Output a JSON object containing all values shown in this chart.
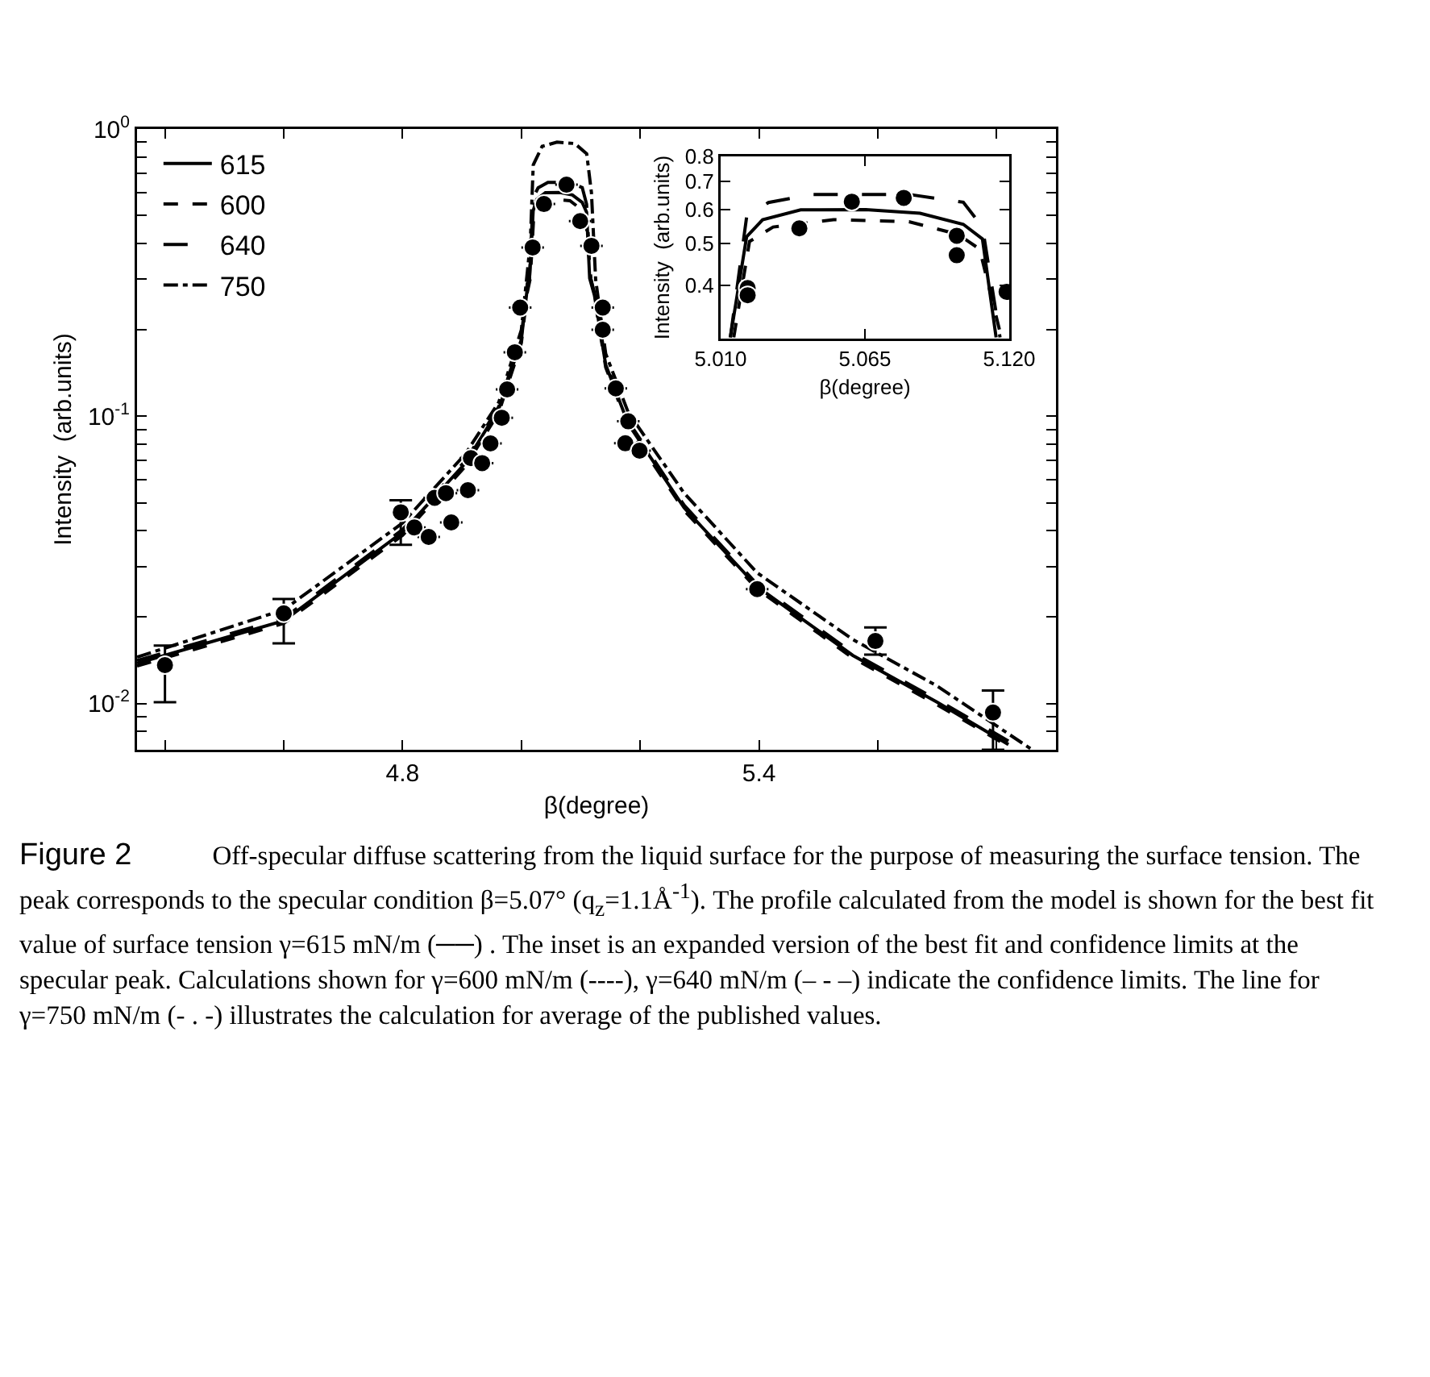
{
  "chart_data": [
    {
      "type": "line",
      "title": "Figure 2",
      "xlabel": "β(degree)",
      "ylabel": "Intensity  (arb.units)",
      "log": "y",
      "legend": "top left",
      "grid": false,
      "xlim": [
        4.353,
        5.9
      ],
      "xticks": [
        {
          "value": 4.4,
          "label": null
        },
        {
          "value": 4.6,
          "label": null
        },
        4.8,
        {
          "value": 5.0,
          "label": null
        },
        {
          "value": 5.2,
          "label": null
        },
        5.4,
        {
          "value": 5.6,
          "label": null
        },
        {
          "value": 5.8,
          "label": null
        }
      ],
      "ylim": [
        0.0069,
        1
      ],
      "yticks": [
        {
          "value": 0.008,
          "label": null
        },
        {
          "value": 0.009,
          "label": null
        },
        {
          "value": 0.01,
          "label": "10$^{-2}$"
        },
        {
          "value": 0.02,
          "label": null
        },
        {
          "value": 0.03,
          "label": null
        },
        {
          "value": 0.04,
          "label": null
        },
        {
          "value": 0.05,
          "label": null
        },
        {
          "value": 0.06,
          "label": null
        },
        {
          "value": 0.07,
          "label": null
        },
        {
          "value": 0.08,
          "label": null
        },
        {
          "value": 0.09,
          "label": null
        },
        {
          "value": 0.1,
          "label": "10$^{-1}$"
        },
        {
          "value": 0.2,
          "label": null
        },
        {
          "value": 0.3,
          "label": null
        },
        {
          "value": 0.4,
          "label": null
        },
        {
          "value": 0.5,
          "label": null
        },
        {
          "value": 0.6,
          "label": null
        },
        {
          "value": 0.7,
          "label": null
        },
        {
          "value": 0.8,
          "label": null
        },
        {
          "value": 0.9,
          "label": null
        },
        {
          "value": 1,
          "label": "10$^{0}$"
        }
      ],
      "annotations": [
        "Off-specular diffuse scattering from the liquid surface for the purpose of measuring the surface tension.  The peak corresponds to the specular condition β=5.07° (q$_{z}$=1.1Å$^{-1}$).  The profile calculated from the model is shown  for the best fit value  of surface tension γ=615 mN/m (──) . The inset is an expanded version of the best fit and confidence limits at the specular peak. Calculations shown for  γ=600 mN/m (----),  γ=640 mN/m (– - –) indicate the confidence limits. The line for γ=750 mN/m (- . -) illustrates the calculation for average of the published values."
      ],
      "series": [
        {
          "name": "615",
          "color": "#000000",
          "line_style": "solid",
          "x": [
            4.353,
            4.6,
            4.8,
            4.906,
            4.962,
            5.0,
            5.01,
            5.0137,
            5.0199,
            5.026,
            5.0405,
            5.0653,
            5.086,
            5.1025,
            5.1098,
            5.115,
            5.123,
            5.142,
            5.18,
            5.274,
            5.397,
            5.558,
            5.7,
            5.82
          ],
          "values": [
            0.0138,
            0.0194,
            0.0395,
            0.0687,
            0.106,
            0.185,
            0.28,
            0.302,
            0.519,
            0.569,
            0.6,
            0.601,
            0.589,
            0.555,
            0.513,
            0.302,
            0.264,
            0.151,
            0.094,
            0.048,
            0.0255,
            0.0147,
            0.0101,
            0.0072
          ]
        },
        {
          "name": "600",
          "color": "#000000",
          "line_style": "dashed",
          "x": [
            4.353,
            4.6,
            4.8,
            4.906,
            4.962,
            5.0,
            5.01,
            5.015,
            5.021,
            5.03,
            5.053,
            5.0818,
            5.1004,
            5.1087,
            5.117,
            5.123,
            5.142,
            5.18,
            5.274,
            5.397,
            5.558,
            5.7,
            5.82
          ],
          "values": [
            0.0135,
            0.019,
            0.0385,
            0.067,
            0.103,
            0.18,
            0.27,
            0.302,
            0.506,
            0.547,
            0.569,
            0.563,
            0.526,
            0.486,
            0.302,
            0.26,
            0.148,
            0.092,
            0.047,
            0.025,
            0.0144,
            0.0099,
            0.0071
          ]
        },
        {
          "name": "640",
          "color": "#000000",
          "line_style": "longdash",
          "x": [
            4.353,
            4.6,
            4.8,
            4.906,
            4.962,
            5.0,
            5.01,
            5.0137,
            5.0199,
            5.0282,
            5.0447,
            5.0818,
            5.1025,
            5.1098,
            5.1165,
            5.123,
            5.142,
            5.18,
            5.274,
            5.397,
            5.558,
            5.7,
            5.82
          ],
          "values": [
            0.0141,
            0.0198,
            0.0403,
            0.07,
            0.108,
            0.19,
            0.29,
            0.302,
            0.577,
            0.624,
            0.652,
            0.652,
            0.625,
            0.547,
            0.302,
            0.27,
            0.154,
            0.096,
            0.049,
            0.026,
            0.015,
            0.0103,
            0.0074
          ]
        },
        {
          "name": "750",
          "color": "#000000",
          "line_style": "dashdot",
          "x": [
            4.353,
            4.6,
            4.8,
            4.906,
            4.962,
            5.0,
            5.015,
            5.02,
            5.035,
            5.06,
            5.09,
            5.11,
            5.118,
            5.125,
            5.142,
            5.18,
            5.274,
            5.397,
            5.558,
            5.7,
            5.86
          ],
          "values": [
            0.0145,
            0.0212,
            0.0425,
            0.074,
            0.112,
            0.2,
            0.4,
            0.75,
            0.87,
            0.9,
            0.89,
            0.82,
            0.6,
            0.3,
            0.165,
            0.103,
            0.054,
            0.0285,
            0.0167,
            0.0115,
            0.0069
          ]
        },
        {
          "type": "scatter",
          "marker": "circle",
          "color": "#000000",
          "x": [
            4.4,
            4.6,
            4.797,
            4.82,
            4.844,
            4.854,
            4.873,
            4.882,
            4.91,
            4.915,
            4.934,
            4.948,
            4.967,
            4.976,
            4.989,
            4.998,
            5.019,
            5.038,
            5.076,
            5.099,
            5.118,
            5.137,
            5.137,
            5.159,
            5.175,
            5.18,
            5.199,
            5.397,
            5.596,
            5.794
          ],
          "values": [
            0.0136,
            0.0206,
            0.0463,
            0.041,
            0.038,
            0.052,
            0.054,
            0.0427,
            0.0553,
            0.0715,
            0.0687,
            0.0804,
            0.0988,
            0.124,
            0.167,
            0.239,
            0.387,
            0.548,
            0.64,
            0.478,
            0.392,
            0.239,
            0.2,
            0.125,
            0.0805,
            0.096,
            0.0759,
            0.025,
            0.0165,
            0.0093
          ],
          "errors": [
            [
              0.0101,
              0.0159
            ],
            [
              0.0162,
              0.0231
            ],
            [
              0.0357,
              0.051
            ],
            null,
            null,
            null,
            null,
            null,
            null,
            null,
            null,
            null,
            null,
            null,
            null,
            null,
            null,
            null,
            null,
            null,
            null,
            null,
            null,
            null,
            null,
            null,
            null,
            null,
            [
              0.0148,
              0.0184
            ],
            [
              0.0069,
              0.0111
            ]
          ]
        }
      ]
    },
    {
      "type": "line",
      "xlabel": "β(degree)",
      "ylabel": "Intensity  (arb.units)",
      "log": "y",
      "legend": false,
      "grid": false,
      "xlim": [
        5.01,
        5.12
      ],
      "xticks": [
        {
          "value": 5.01,
          "label": "5.010"
        },
        {
          "value": 5.065,
          "label": "5.065"
        },
        {
          "value": 5.12,
          "label": "5.120"
        }
      ],
      "ylim": [
        0.3,
        0.8
      ],
      "yticks": [
        0.4,
        0.5,
        0.6,
        0.7,
        0.8
      ],
      "series": [
        {
          "name": "615",
          "color": "#000000",
          "line_style": "solid",
          "x": [
            5.0137,
            5.0199,
            5.026,
            5.0405,
            5.0653,
            5.086,
            5.1025,
            5.1098,
            5.115
          ],
          "values": [
            0.302,
            0.519,
            0.569,
            0.6,
            0.601,
            0.589,
            0.555,
            0.513,
            0.302
          ]
        },
        {
          "name": "600",
          "color": "#000000",
          "line_style": "dashed",
          "x": [
            5.015,
            5.021,
            5.03,
            5.053,
            5.0818,
            5.1004,
            5.1087,
            5.117
          ],
          "values": [
            0.302,
            0.506,
            0.547,
            0.569,
            0.563,
            0.526,
            0.486,
            0.302
          ]
        },
        {
          "name": "640",
          "color": "#000000",
          "line_style": "longdash",
          "x": [
            5.0137,
            5.0199,
            5.0282,
            5.0447,
            5.0818,
            5.1025,
            5.1098,
            5.1165
          ],
          "values": [
            0.302,
            0.577,
            0.624,
            0.652,
            0.652,
            0.625,
            0.547,
            0.302
          ]
        },
        {
          "type": "scatter",
          "marker": "circle",
          "color": "#000000",
          "x": [
            5.0203,
            5.0203,
            5.04,
            5.06,
            5.0798,
            5.1,
            5.1,
            5.119
          ],
          "values": [
            0.394,
            0.379,
            0.543,
            0.627,
            0.64,
            0.522,
            0.47,
            0.386
          ]
        }
      ]
    }
  ]
}
